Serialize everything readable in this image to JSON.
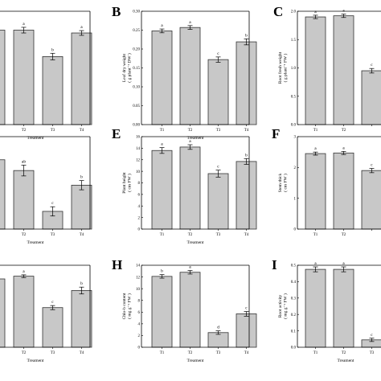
{
  "colors": {
    "bar_fill": "#c8c8c8",
    "bar_stroke": "#333333",
    "axis": "#000000",
    "background": "#ffffff"
  },
  "chart_data": [
    {
      "panel": "A",
      "letter": "",
      "type": "bar",
      "categories": [
        "T1",
        "T2",
        "T3",
        "T4"
      ],
      "tick_labels": [
        "",
        "T2",
        "T3",
        "T4"
      ],
      "values": [
        1.0,
        1.0,
        0.72,
        0.97
      ],
      "errors": [
        0.03,
        0.03,
        0.035,
        0.025
      ],
      "significance": [
        "",
        "a",
        "b",
        "a"
      ],
      "xlabel": "Treament",
      "ylabel": [],
      "ylim": [
        0,
        1.2
      ],
      "yticks": [],
      "show_y_axis": false
    },
    {
      "panel": "B",
      "letter": "B",
      "type": "bar",
      "categories": [
        "T1",
        "T2",
        "T3",
        "T4"
      ],
      "tick_labels": [
        "T1",
        "T2",
        "T3",
        "T4"
      ],
      "values": [
        0.248,
        0.257,
        0.172,
        0.219
      ],
      "errors": [
        0.005,
        0.005,
        0.007,
        0.008
      ],
      "significance": [
        "a",
        "a",
        "c",
        "b"
      ],
      "xlabel": "Treament",
      "ylabel": [
        "Leaf dry weight",
        "( g plant⁻¹ DW )"
      ],
      "ylim": [
        0,
        0.3
      ],
      "yticks": [
        "0.00",
        "0.05",
        "0.10",
        "0.15",
        "0.20",
        "0.25",
        "0.30"
      ],
      "show_y_axis": true
    },
    {
      "panel": "C",
      "letter": "C",
      "type": "bar",
      "categories": [
        "T1",
        "T2",
        "T3",
        "T4"
      ],
      "tick_labels": [
        "T1",
        "T2",
        "",
        ""
      ],
      "values": [
        1.9,
        1.92,
        0.95,
        null
      ],
      "errors": [
        0.03,
        0.03,
        0.04,
        null
      ],
      "significance": [
        "a",
        "a",
        "c",
        ""
      ],
      "xlabel": "",
      "ylabel": [
        "Root fresh weight",
        "( g plant⁻¹ FW )"
      ],
      "ylim": [
        0,
        2.0
      ],
      "yticks": [
        "0.0",
        "0.5",
        "1.0",
        "1.5",
        "2.0"
      ],
      "show_y_axis": true
    },
    {
      "panel": "D",
      "letter": "",
      "type": "bar",
      "categories": [
        "T1",
        "T2",
        "T3",
        "T4"
      ],
      "tick_labels": [
        "",
        "T2",
        "T3",
        "T4"
      ],
      "values": [
        0.9,
        0.76,
        0.23,
        0.57
      ],
      "errors": [
        0.03,
        0.07,
        0.06,
        0.06
      ],
      "significance": [
        "",
        "ab",
        "c",
        "b"
      ],
      "xlabel": "Treament",
      "ylabel": [],
      "ylim": [
        0,
        1.2
      ],
      "yticks": [],
      "show_y_axis": false
    },
    {
      "panel": "E",
      "letter": "E",
      "type": "bar",
      "categories": [
        "T1",
        "T2",
        "T3",
        "T4"
      ],
      "tick_labels": [
        "T1",
        "T2",
        "T3",
        "T4"
      ],
      "values": [
        13.6,
        14.2,
        9.6,
        11.7
      ],
      "errors": [
        0.5,
        0.4,
        0.6,
        0.5
      ],
      "significance": [
        "a",
        "a",
        "c",
        "b"
      ],
      "xlabel": "Treament",
      "ylabel": [
        "Plant height",
        "( cm FW )"
      ],
      "ylim": [
        0,
        16
      ],
      "yticks": [
        "0",
        "2",
        "4",
        "6",
        "8",
        "10",
        "12",
        "14",
        "16"
      ],
      "show_y_axis": true
    },
    {
      "panel": "F",
      "letter": "F",
      "type": "bar",
      "categories": [
        "T1",
        "T2",
        "T3",
        "T4"
      ],
      "tick_labels": [
        "T1",
        "T2",
        "",
        ""
      ],
      "values": [
        2.45,
        2.47,
        1.9,
        null
      ],
      "errors": [
        0.05,
        0.05,
        0.07,
        null
      ],
      "significance": [
        "a",
        "a",
        "c",
        ""
      ],
      "xlabel": "",
      "ylabel": [
        "Stem thick",
        "( cm FW )"
      ],
      "ylim": [
        0,
        3
      ],
      "yticks": [
        "0",
        "1",
        "2",
        "3"
      ],
      "show_y_axis": true
    },
    {
      "panel": "G",
      "letter": "",
      "type": "bar",
      "categories": [
        "T1",
        "T2",
        "T3",
        "T4"
      ],
      "tick_labels": [
        "",
        "T2",
        "T3",
        "T4"
      ],
      "values": [
        1.0,
        1.04,
        0.58,
        0.83
      ],
      "errors": [
        0.03,
        0.02,
        0.03,
        0.05
      ],
      "significance": [
        "",
        "a",
        "c",
        "b"
      ],
      "xlabel": "Treament",
      "ylabel": [],
      "ylim": [
        0,
        1.2
      ],
      "yticks": [],
      "show_y_axis": false
    },
    {
      "panel": "H",
      "letter": "H",
      "type": "bar",
      "categories": [
        "T1",
        "T2",
        "T3",
        "T4"
      ],
      "tick_labels": [
        "T1",
        "T2",
        "T3",
        "T4"
      ],
      "values": [
        12.1,
        12.8,
        2.5,
        5.7
      ],
      "errors": [
        0.3,
        0.3,
        0.3,
        0.4
      ],
      "significance": [
        "b",
        "a",
        "d",
        "c"
      ],
      "xlabel": "Treament",
      "ylabel": [
        "Chlo-b content",
        "( mg g⁻¹ FW )"
      ],
      "ylim": [
        0,
        14
      ],
      "yticks": [
        "0",
        "2",
        "4",
        "6",
        "8",
        "10",
        "12",
        "14"
      ],
      "show_y_axis": true
    },
    {
      "panel": "I",
      "letter": "I",
      "type": "bar",
      "categories": [
        "T1",
        "T2",
        "T3",
        "T4"
      ],
      "tick_labels": [
        "T1",
        "T2",
        "T3",
        ""
      ],
      "values": [
        0.475,
        0.475,
        0.045,
        null
      ],
      "errors": [
        0.015,
        0.015,
        0.01,
        null
      ],
      "significance": [
        "a",
        "a",
        "c",
        ""
      ],
      "xlabel": "Treament",
      "ylabel": [
        "Root activity",
        "( mg g⁻¹ FW )"
      ],
      "ylim": [
        0,
        0.5
      ],
      "yticks": [
        "0.0",
        "0.1",
        "0.2",
        "0.3",
        "0.4",
        "0.5"
      ],
      "show_y_axis": true
    }
  ]
}
